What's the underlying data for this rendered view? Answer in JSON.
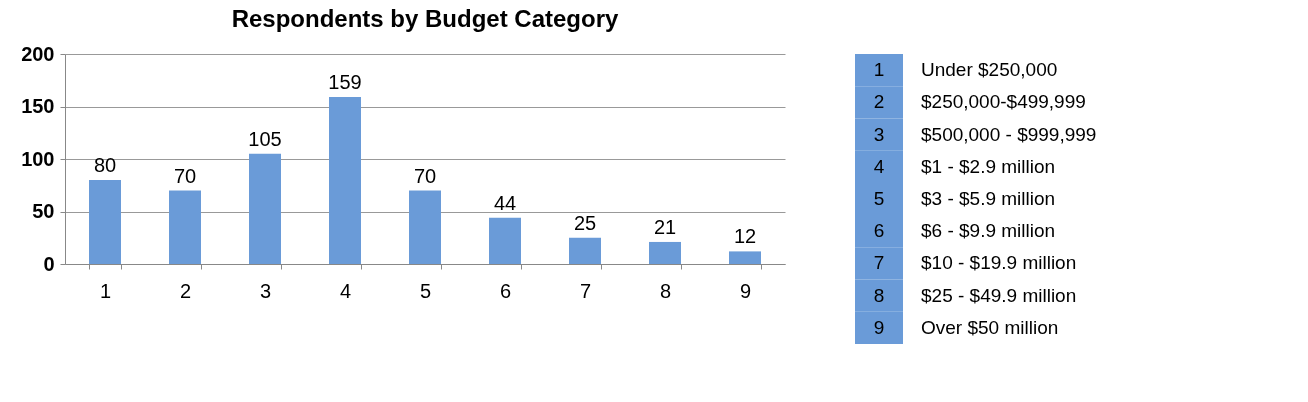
{
  "chart_data": {
    "type": "bar",
    "title": "Respondents by Budget Category",
    "categories": [
      "1",
      "2",
      "3",
      "4",
      "5",
      "6",
      "7",
      "8",
      "9"
    ],
    "values": [
      80,
      70,
      105,
      159,
      70,
      44,
      25,
      21,
      12
    ],
    "color": "#6a9bd8",
    "ylim": [
      0,
      200
    ],
    "yticks": [
      0,
      50,
      100,
      150,
      200
    ],
    "grid": "y",
    "data_labels": true,
    "annotations": [
      "Under $250,000",
      "$250,000-$499,999",
      "$500,000 - $999,999",
      "$1 - $2.9 million",
      "$3 - $5.9  million",
      "$6 - $9.9 million",
      "$10 - $19.9 million",
      "$25 - $49.9 million",
      "Over $50 million"
    ]
  }
}
